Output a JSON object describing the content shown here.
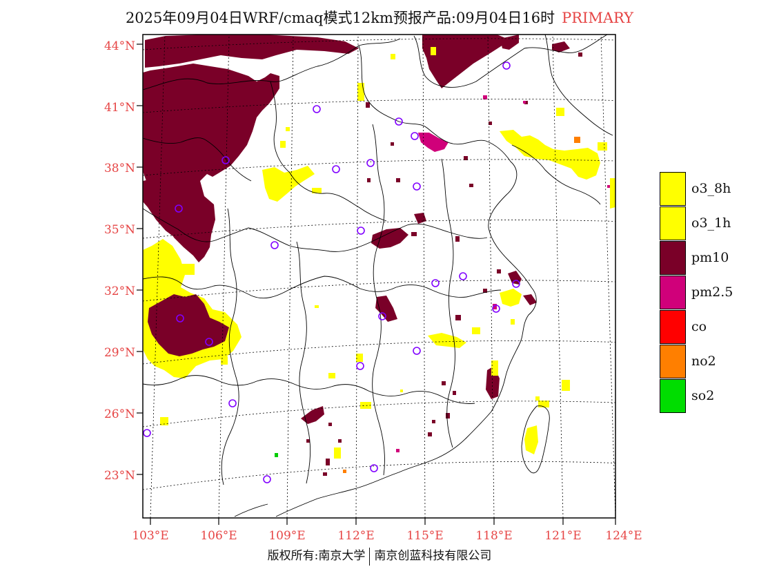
{
  "header": {
    "title": "2025年09月04日WRF/cmaq模式12km预报产品:09月04日16时",
    "tag": "PRIMARY"
  },
  "map": {
    "lat_labels": [
      "44°N",
      "41°N",
      "38°N",
      "35°N",
      "32°N",
      "29°N",
      "26°N",
      "23°N"
    ],
    "lon_labels": [
      "103°E",
      "106°E",
      "109°E",
      "112°E",
      "115°E",
      "118°E",
      "121°E",
      "124°E"
    ],
    "colors": {
      "pm10": "#7a0028",
      "o3": "#ffff00",
      "pm25": "#d0007a",
      "no2": "#ff7f00",
      "so2": "#00cc00",
      "station": "#8000ff",
      "border": "#000000",
      "grid": "#000000"
    }
  },
  "legend": {
    "items": [
      {
        "label": "o3_8h",
        "color": "#ffff00"
      },
      {
        "label": "o3_1h",
        "color": "#ffff00"
      },
      {
        "label": "pm10",
        "color": "#7a0028"
      },
      {
        "label": "pm2.5",
        "color": "#d0007a"
      },
      {
        "label": "co",
        "color": "#ff0000"
      },
      {
        "label": "no2",
        "color": "#ff7f00"
      },
      {
        "label": "so2",
        "color": "#00dd00"
      }
    ]
  },
  "footer": {
    "copyright": "版权所有:南京大学",
    "company": "南京创蓝科技有限公司"
  }
}
